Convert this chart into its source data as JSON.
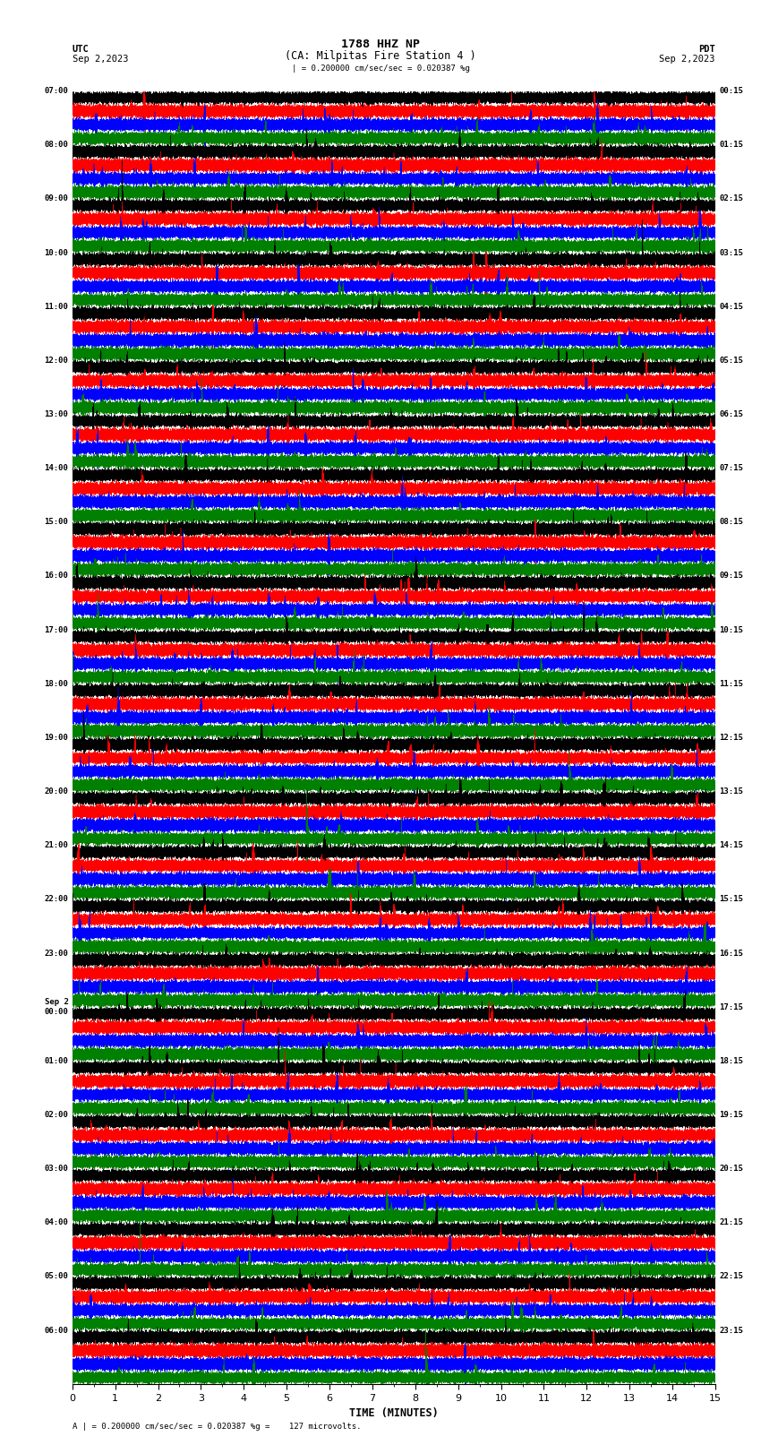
{
  "title_line1": "1788 HHZ NP",
  "title_line2": "(CA: Milpitas Fire Station 4 )",
  "utc_label": "UTC",
  "pdt_label": "PDT",
  "date_left": "Sep 2,2023",
  "date_right": "Sep 2,2023",
  "scale_text": "| = 0.200000 cm/sec/sec = 0.020387 %g",
  "bottom_text": "A | = 0.200000 cm/sec/sec = 0.020387 %g =    127 microvolts.",
  "xlabel": "TIME (MINUTES)",
  "xlim": [
    0,
    15
  ],
  "xticks": [
    0,
    1,
    2,
    3,
    4,
    5,
    6,
    7,
    8,
    9,
    10,
    11,
    12,
    13,
    14,
    15
  ],
  "colors": [
    "black",
    "red",
    "blue",
    "green"
  ],
  "n_minutes": 15,
  "n_rows": 96,
  "hour_labels_left": [
    [
      "07:00",
      0
    ],
    [
      "08:00",
      4
    ],
    [
      "09:00",
      8
    ],
    [
      "10:00",
      12
    ],
    [
      "11:00",
      16
    ],
    [
      "12:00",
      20
    ],
    [
      "13:00",
      24
    ],
    [
      "14:00",
      28
    ],
    [
      "15:00",
      32
    ],
    [
      "16:00",
      36
    ],
    [
      "17:00",
      40
    ],
    [
      "18:00",
      44
    ],
    [
      "19:00",
      48
    ],
    [
      "20:00",
      52
    ],
    [
      "21:00",
      56
    ],
    [
      "22:00",
      60
    ],
    [
      "23:00",
      64
    ],
    [
      "Sep 2\n00:00",
      68
    ],
    [
      "01:00",
      72
    ],
    [
      "02:00",
      76
    ],
    [
      "03:00",
      80
    ],
    [
      "04:00",
      84
    ],
    [
      "05:00",
      88
    ],
    [
      "06:00",
      92
    ]
  ],
  "hour_labels_right": [
    [
      "00:15",
      0
    ],
    [
      "01:15",
      4
    ],
    [
      "02:15",
      8
    ],
    [
      "03:15",
      12
    ],
    [
      "04:15",
      16
    ],
    [
      "05:15",
      20
    ],
    [
      "06:15",
      24
    ],
    [
      "07:15",
      28
    ],
    [
      "08:15",
      32
    ],
    [
      "09:15",
      36
    ],
    [
      "10:15",
      40
    ],
    [
      "11:15",
      44
    ],
    [
      "12:15",
      48
    ],
    [
      "13:15",
      52
    ],
    [
      "14:15",
      56
    ],
    [
      "15:15",
      60
    ],
    [
      "16:15",
      64
    ],
    [
      "17:15",
      68
    ],
    [
      "18:15",
      72
    ],
    [
      "19:15",
      76
    ],
    [
      "20:15",
      80
    ],
    [
      "21:15",
      84
    ],
    [
      "22:15",
      88
    ],
    [
      "23:15",
      92
    ]
  ]
}
